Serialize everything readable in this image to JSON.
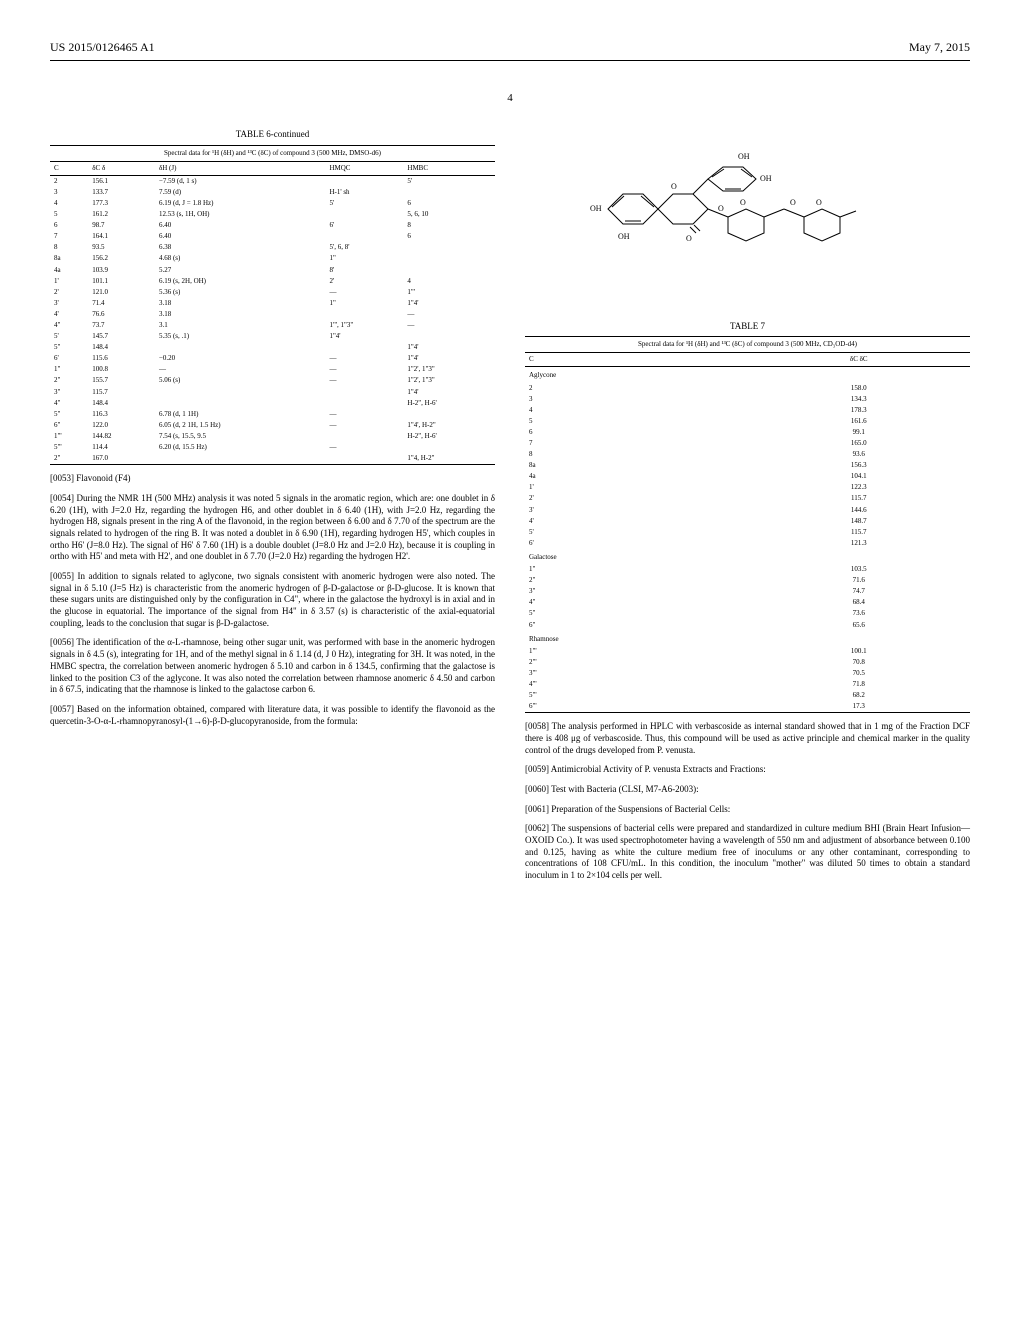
{
  "header": {
    "patent_no": "US 2015/0126465 A1",
    "date": "May 7, 2015"
  },
  "page_number": "4",
  "table6": {
    "caption": "TABLE 6-continued",
    "subtitle": "Spectral data for ¹H (δH) and ¹³C (δC) of compound 3\n(500 MHz, DMSO-d6)",
    "headers": [
      "C",
      "δC\nδ",
      "δH\n(J)",
      "HMQC",
      "HMBC"
    ],
    "rows": [
      [
        "2",
        "156.1",
        "−7.59 (d, 1 s)",
        "",
        "5'"
      ],
      [
        "3",
        "133.7",
        "7.59 (d)",
        "H-1' sh",
        ""
      ],
      [
        "4",
        "177.3",
        "6.19 (d, J = 1.8 Hz)",
        "5'",
        "6"
      ],
      [
        "5",
        "161.2",
        "12.53 (s, 1H, OH)",
        "",
        "5, 6, 10"
      ],
      [
        "6",
        "98.7",
        "6.40",
        "6'",
        "8"
      ],
      [
        "7",
        "164.1",
        "6.40",
        "",
        "6"
      ],
      [
        "8",
        "93.5",
        "6.38",
        "5', 6, 8'",
        ""
      ],
      [
        "8a",
        "156.2",
        "4.68 (s)",
        "1\"",
        ""
      ],
      [
        "4a",
        "103.9",
        "5.27",
        "8'",
        ""
      ],
      [
        "1'",
        "101.1",
        "6.19 (s, 2H, OH)",
        "2'",
        "4"
      ],
      [
        "2'",
        "121.0",
        "5.36 (s)",
        "—",
        "1\"'"
      ],
      [
        "3'",
        "71.4",
        "3.18",
        "1\"",
        "1\"4'"
      ],
      [
        "4'",
        "76.6",
        "3.18",
        "",
        "—"
      ],
      [
        "4\"",
        "73.7",
        "3.1",
        "1\"', 1\"3\"",
        "—"
      ],
      [
        "5'",
        "145.7",
        "5.35 (s, .1)",
        "1\"4'",
        ""
      ],
      [
        "5\"",
        "148.4",
        "",
        "",
        "1\"4'"
      ],
      [
        "6'",
        "115.6",
        "−0.20",
        "—",
        "1\"4'"
      ],
      [
        "1\"",
        "100.8",
        "—",
        "—",
        "1\"2', 1\"3\""
      ],
      [
        "2\"",
        "155.7",
        "5.06 (s)",
        "—",
        "1\"2', 1\"3\""
      ],
      [
        "3\"",
        "115.7",
        "",
        "",
        "1\"4'"
      ],
      [
        "4\"",
        "148.4",
        "",
        "",
        "H-2\", H-6'"
      ],
      [
        "5\"",
        "116.3",
        "6.78 (d, 1 1H)",
        "—",
        ""
      ],
      [
        "6\"",
        "122.0",
        "6.05 (d, 2 1H, 1.5 Hz)",
        "—",
        "1\"4', H-2\""
      ],
      [
        "1\"'",
        "144.82",
        "7.54 (s, 15.5, 9.5",
        "",
        "H-2\", H-6'"
      ],
      [
        "5\"'",
        "114.4",
        "6.20 (d, 15.5 Hz)",
        "—",
        ""
      ],
      [
        "2\"",
        "167.0",
        "",
        "",
        "1\"4, H-2\""
      ]
    ]
  },
  "table7": {
    "caption": "TABLE 7",
    "subtitle": "Spectral data for ¹H (δH) and ¹³C (δC) of compound 3\n(500 MHz, CD₃OD-d4)",
    "headers": [
      "C",
      "δC\nδC"
    ],
    "sections": [
      {
        "name": "Aglycone",
        "rows": [
          [
            "2",
            "158.0"
          ],
          [
            "3",
            "134.3"
          ],
          [
            "4",
            "178.3"
          ],
          [
            "5",
            "161.6"
          ],
          [
            "6",
            "99.1"
          ],
          [
            "7",
            "165.0"
          ],
          [
            "8",
            "93.6"
          ],
          [
            "8a",
            "156.3"
          ],
          [
            "4a",
            "104.1"
          ],
          [
            "1'",
            "122.3"
          ],
          [
            "2'",
            "115.7"
          ],
          [
            "3'",
            "144.6"
          ],
          [
            "4'",
            "148.7"
          ],
          [
            "5'",
            "115.7"
          ],
          [
            "6'",
            "121.3"
          ]
        ]
      },
      {
        "name": "Galactose",
        "rows": [
          [
            "1\"",
            "103.5"
          ],
          [
            "2\"",
            "71.6"
          ],
          [
            "3\"",
            "74.7"
          ],
          [
            "4\"",
            "68.4"
          ],
          [
            "5\"",
            "73.6"
          ],
          [
            "6\"",
            "65.6"
          ]
        ]
      },
      {
        "name": "Rhamnose",
        "rows": [
          [
            "1\"'",
            "100.1"
          ],
          [
            "2\"'",
            "70.8"
          ],
          [
            "3\"'",
            "70.5"
          ],
          [
            "4\"'",
            "71.8"
          ],
          [
            "5\"'",
            "68.2"
          ],
          [
            "6\"'",
            "17.3"
          ]
        ]
      }
    ]
  },
  "paras": {
    "p53": "[0053]   Flavonoid (F4)",
    "p54": "[0054]   During the NMR 1H (500 MHz) analysis it was noted 5 signals in the aromatic region, which are: one doublet in δ 6.20 (1H), with J=2.0 Hz, regarding the hydrogen H6, and other doublet in δ 6.40 (1H), with J=2.0 Hz, regarding the hydrogen H8, signals present in the ring A of the flavonoid, in the region between δ 6.00 and δ 7.70 of the spectrum are the signals related to hydrogen of the ring B. It was noted a doublet in δ 6.90 (1H), regarding hydrogen H5', which couples in ortho H6' (J=8.0 Hz). The signal of H6' δ 7.60 (1H) is a double doublet (J=8.0 Hz and J=2.0 Hz), because it is coupling in ortho with H5' and meta with H2', and one doublet in δ 7.70 (J=2.0 Hz) regarding the hydrogen H2'.",
    "p55": "[0055]   In addition to signals related to aglycone, two signals consistent with anomeric hydrogen were also noted. The signal in δ 5.10 (J=5 Hz) is characteristic from the anomeric hydrogen of β-D-galactose or β-D-glucose. It is known that these sugars units are distinguished only by the configuration in C4\", where in the galactose the hydroxyl is in axial and in the glucose in equatorial. The importance of the signal from H4\" in δ 3.57 (s) is characteristic of the axial-equatorial coupling, leads to the conclusion that sugar is β-D-galactose.",
    "p56": "[0056]   The identification of the α-L-rhamnose, being other sugar unit, was performed with base in the anomeric hydrogen signals in δ 4.5 (s), integrating for 1H, and of the methyl signal in δ 1.14 (d, J 0 Hz), integrating for 3H. It was noted, in the HMBC spectra, the correlation between anomeric hydrogen δ 5.10 and carbon in δ 134.5, confirming that the galactose is linked to the position C3 of the aglycone. It was also noted the correlation between rhamnose anomeric δ 4.50 and carbon in δ 67.5, indicating that the rhamnose is linked to the galactose carbon 6.",
    "p57": "[0057]   Based on the information obtained, compared with literature data, it was possible to identify the flavonoid as the quercetin-3-O-α-L-rhamnopyranosyl-(1→6)-β-D-glucopyranoside, from the formula:",
    "p58": "[0058]   The analysis performed in HPLC with verbascoside as internal standard showed that in 1 mg of the Fraction DCF there is 408 μg of verbascoside. Thus, this compound will be used as active principle and chemical marker in the quality control of the drugs developed from P. venusta.",
    "p59": "[0059]   Antimicrobial Activity of P. venusta Extracts and Fractions:",
    "p60": "[0060]   Test with Bacteria (CLSI, M7-A6-2003):",
    "p61": "[0061]   Preparation of the Suspensions of Bacterial Cells:",
    "p62": "[0062]   The suspensions of bacterial cells were prepared and standardized in culture medium BHI (Brain Heart Infusion—OXOID Co.). It was used spectrophotometer having a wavelength of 550 nm and adjustment of absorbance between 0.100 and 0.125, having as white the culture medium free of inoculums or any other contaminant, corresponding to concentrations of 108 CFU/mL. In this condition, the inoculum \"mother\" was diluted 50 times to obtain a standard inoculum in 1 to 2×104 cells per well."
  }
}
